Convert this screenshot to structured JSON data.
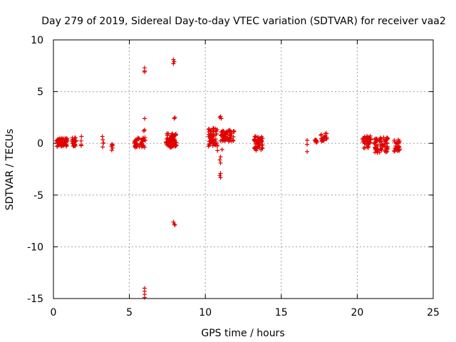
{
  "chart_data": {
    "type": "scatter",
    "title": "Day 279 of 2019, Sidereal Day-to-day VTEC variation (SDTVAR) for receiver vaa2",
    "xlabel": "GPS time / hours",
    "ylabel": "SDTVAR / TECUs",
    "xlim": [
      0,
      25
    ],
    "ylim": [
      -15,
      10
    ],
    "x_ticks": [
      0,
      5,
      10,
      15,
      20,
      25
    ],
    "y_ticks": [
      -15,
      -10,
      -5,
      0,
      5,
      10
    ],
    "grid": true,
    "marker": "plus",
    "series_color": "#e00000",
    "clusters": [
      {
        "x": [
          0.2,
          0.9
        ],
        "y": [
          -0.3,
          0.5
        ],
        "n": 70
      },
      {
        "x": [
          1.2,
          1.5
        ],
        "y": [
          -0.3,
          0.6
        ],
        "n": 25
      },
      {
        "x": [
          1.8,
          1.85
        ],
        "y": [
          -0.3,
          0.7
        ],
        "n": 5
      },
      {
        "x": [
          3.2,
          3.3
        ],
        "y": [
          -0.8,
          0.8
        ],
        "n": 5
      },
      {
        "x": [
          3.8,
          3.9
        ],
        "y": [
          -0.8,
          0.3
        ],
        "n": 6
      },
      {
        "x": [
          5.3,
          6.1
        ],
        "y": [
          -0.4,
          0.6
        ],
        "n": 45
      },
      {
        "x": [
          7.4,
          8.1
        ],
        "y": [
          -0.4,
          1.0
        ],
        "n": 80
      },
      {
        "x": [
          10.2,
          10.8
        ],
        "y": [
          -0.3,
          1.5
        ],
        "n": 60
      },
      {
        "x": [
          11.0,
          11.9
        ],
        "y": [
          0.2,
          1.3
        ],
        "n": 60
      },
      {
        "x": [
          13.2,
          13.8
        ],
        "y": [
          -0.7,
          0.7
        ],
        "n": 45
      },
      {
        "x": [
          17.2,
          17.4
        ],
        "y": [
          0.0,
          0.4
        ],
        "n": 8
      },
      {
        "x": [
          17.6,
          18.0
        ],
        "y": [
          0.2,
          1.1
        ],
        "n": 20
      },
      {
        "x": [
          20.3,
          20.9
        ],
        "y": [
          -0.5,
          0.8
        ],
        "n": 40
      },
      {
        "x": [
          21.1,
          22.0
        ],
        "y": [
          -0.9,
          0.6
        ],
        "n": 70
      },
      {
        "x": [
          22.4,
          22.8
        ],
        "y": [
          -0.8,
          0.4
        ],
        "n": 30
      }
    ],
    "points": [
      [
        6.0,
        7.3
      ],
      [
        6.0,
        7.0
      ],
      [
        6.0,
        6.9
      ],
      [
        6.0,
        2.4
      ],
      [
        6.0,
        1.3
      ],
      [
        5.95,
        1.2
      ],
      [
        6.0,
        -14.0
      ],
      [
        6.0,
        -14.3
      ],
      [
        6.0,
        -14.6
      ],
      [
        6.0,
        -14.9
      ],
      [
        7.9,
        8.1
      ],
      [
        7.95,
        7.9
      ],
      [
        7.9,
        7.7
      ],
      [
        8.0,
        2.5
      ],
      [
        7.95,
        2.4
      ],
      [
        7.9,
        -7.6
      ],
      [
        7.95,
        -7.8
      ],
      [
        8.0,
        -7.9
      ],
      [
        11.0,
        2.6
      ],
      [
        10.95,
        2.5
      ],
      [
        11.05,
        2.4
      ],
      [
        11.0,
        -1.3
      ],
      [
        10.95,
        -1.6
      ],
      [
        11.0,
        -1.9
      ],
      [
        11.0,
        -2.9
      ],
      [
        10.95,
        -3.1
      ],
      [
        11.0,
        -3.3
      ],
      [
        10.8,
        -0.7
      ],
      [
        11.1,
        -0.6
      ],
      [
        16.7,
        0.3
      ],
      [
        16.7,
        -0.1
      ],
      [
        16.7,
        -0.8
      ]
    ]
  }
}
